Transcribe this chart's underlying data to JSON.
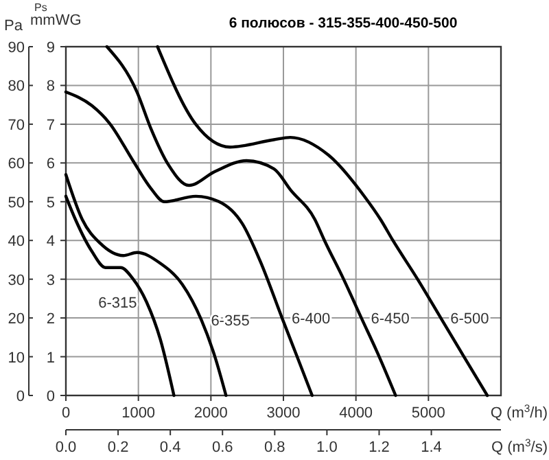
{
  "chart_data": {
    "type": "line",
    "title": "6 полюсов - 315-355-400-450-500",
    "xlabel": "Q (m$^{3}$/h)",
    "x2label": "Q (m$^{3}$/s)",
    "ylabel": "Ps mmWG",
    "y2label": "Pa",
    "xlim": [
      0,
      6000
    ],
    "xticks": [
      0,
      1000,
      2000,
      3000,
      4000,
      5000
    ],
    "x2lim": [
      0,
      1.6667
    ],
    "x2ticks": [
      {
        "value": 0,
        "label": "0.0"
      },
      {
        "value": 0.2,
        "label": "0.2"
      },
      {
        "value": 0.4,
        "label": "0.4"
      },
      {
        "value": 0.6,
        "label": "0.6"
      },
      {
        "value": 0.8,
        "label": "0.8"
      },
      {
        "value": 1,
        "label": "1.0"
      },
      {
        "value": 1.2,
        "label": "1.2"
      },
      {
        "value": 1.4,
        "label": "1.4"
      }
    ],
    "ylim": [
      0,
      9
    ],
    "yticks": [
      0,
      1,
      2,
      3,
      4,
      5,
      6,
      7,
      8,
      9
    ],
    "y2lim": [
      0,
      90
    ],
    "y2ticks": [
      0,
      10,
      20,
      30,
      40,
      50,
      60,
      70,
      80,
      90
    ],
    "grid": true,
    "marker": "none",
    "line_style": "solid",
    "series": [
      {
        "name": "6-315",
        "color": "#000000",
        "x": [
          0,
          132,
          358,
          547,
          755,
          925,
          1113,
          1302,
          1490
        ],
        "values": [
          5.14,
          4.54,
          3.72,
          3.3,
          3.3,
          3.01,
          2.41,
          1.45,
          0
        ]
      },
      {
        "name": "6-355",
        "color": "#000000",
        "x": [
          0,
          226,
          472,
          792,
          981,
          1302,
          1604,
          1868,
          2057,
          2208
        ],
        "values": [
          5.7,
          4.54,
          3.93,
          3.61,
          3.69,
          3.41,
          2.87,
          1.95,
          0.99,
          0
        ]
      },
      {
        "name": "6-400",
        "color": "#000000",
        "x": [
          0,
          358,
          604,
          925,
          1170,
          1358,
          1792,
          2113,
          2434,
          2679,
          2981,
          3189,
          3396
        ],
        "values": [
          7.83,
          7.48,
          7.02,
          6.06,
          5.35,
          5.0,
          5.14,
          5.0,
          4.43,
          3.47,
          2,
          1,
          0
        ]
      },
      {
        "name": "6-450",
        "color": "#000000",
        "x": [
          566,
          981,
          1170,
          1415,
          1698,
          2057,
          2491,
          2868,
          3100,
          3434,
          3566,
          3830,
          4075,
          4321,
          4547
        ],
        "values": [
          9,
          7.83,
          6.9,
          5.95,
          5.42,
          5.78,
          6.06,
          5.85,
          5.3,
          4.54,
          4,
          3,
          2,
          1,
          0
        ]
      },
      {
        "name": "6-500",
        "color": "#000000",
        "x": [
          1264,
          1790,
          2264,
          2868,
          3094,
          3623,
          4120,
          4340,
          4510,
          4850,
          5170,
          5490,
          5811
        ],
        "values": [
          9,
          7.0,
          6.41,
          6.6,
          6.66,
          6.2,
          5.13,
          4.54,
          4,
          3,
          2,
          1,
          0
        ]
      }
    ]
  }
}
